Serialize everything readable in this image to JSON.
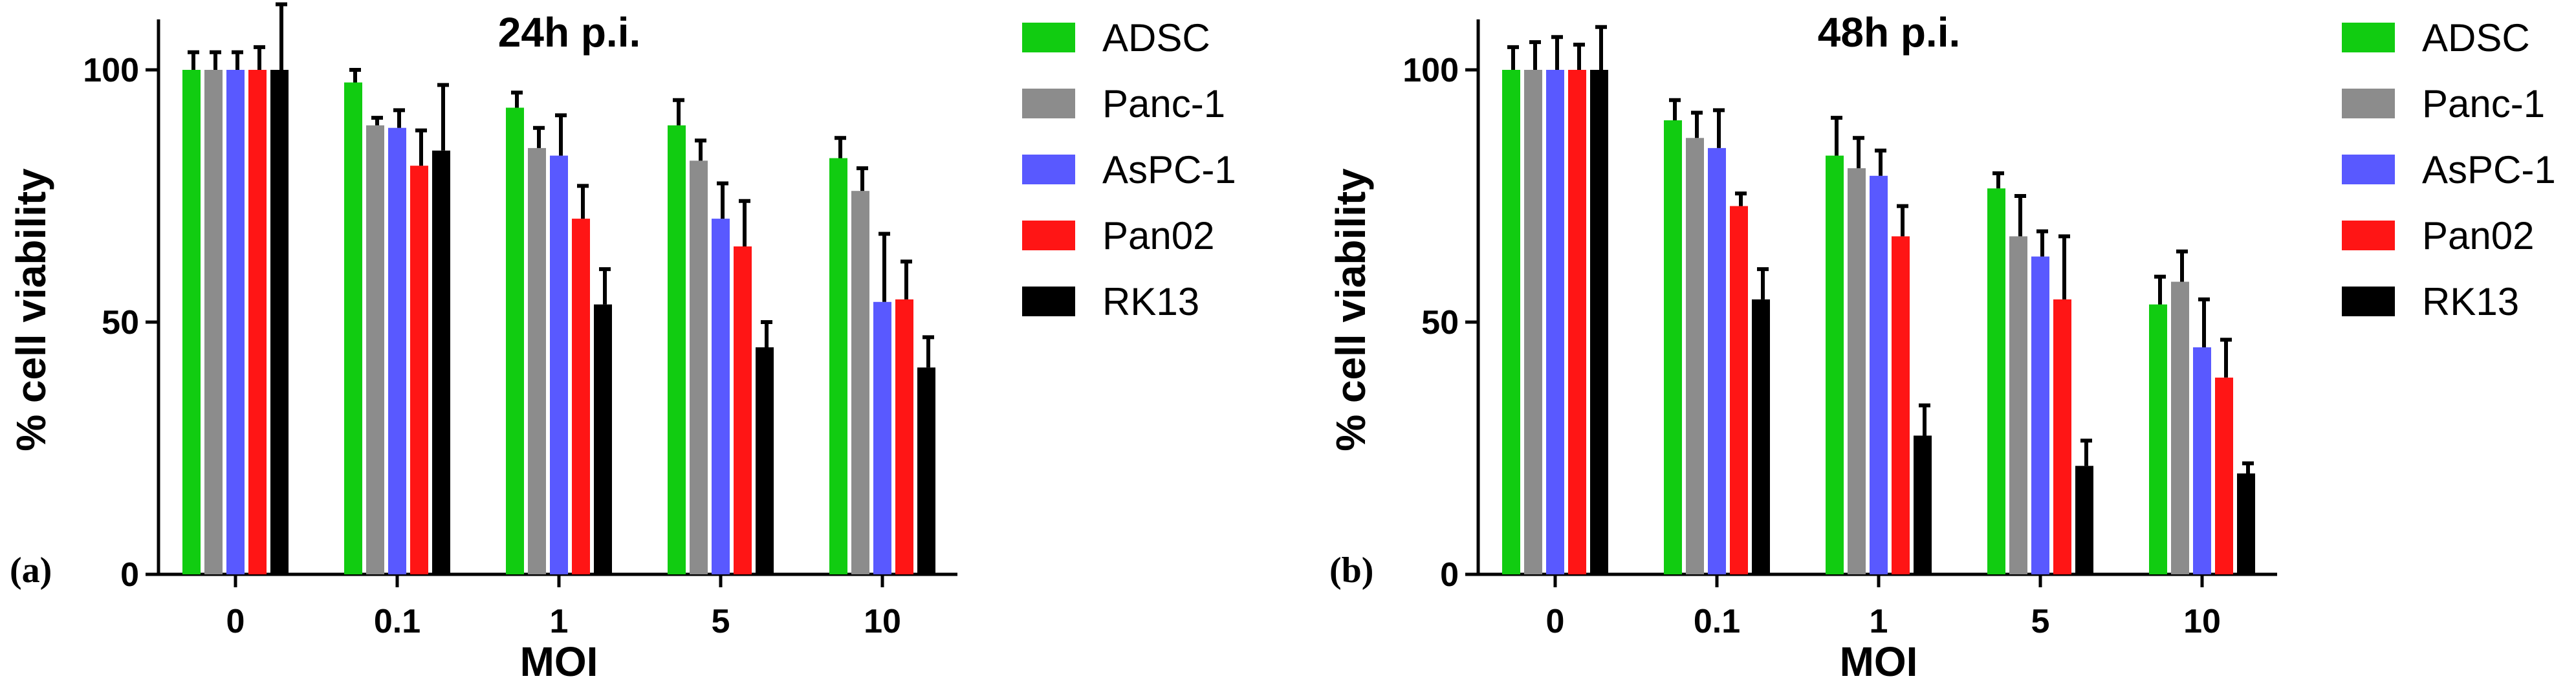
{
  "colors": {
    "ADSC": "#11cc11",
    "Panc-1": "#8c8c8c",
    "AsPC-1": "#5959ff",
    "Pan02": "#ff1515",
    "RK13": "#000000",
    "axis": "#000000"
  },
  "chart_data": [
    {
      "type": "bar",
      "panel_label": "(a)",
      "title": "24h p.i.",
      "xlabel": "MOI",
      "ylabel": "% cell viability",
      "ylim": [
        0,
        110
      ],
      "yticks": [
        0,
        50,
        100
      ],
      "categories": [
        "0",
        "0.1",
        "1",
        "5",
        "10"
      ],
      "series": [
        {
          "name": "ADSC",
          "values": [
            100,
            97.5,
            92.5,
            89,
            82.5
          ],
          "errors": [
            3.5,
            2.5,
            3,
            5,
            4
          ]
        },
        {
          "name": "Panc-1",
          "values": [
            100,
            89,
            84.5,
            82,
            76
          ],
          "errors": [
            3.5,
            1.5,
            4,
            4,
            4.5
          ]
        },
        {
          "name": "AsPC-1",
          "values": [
            100,
            88.5,
            83,
            70.5,
            54
          ],
          "errors": [
            3.5,
            3.5,
            8,
            7,
            13.5
          ]
        },
        {
          "name": "Pan02",
          "values": [
            100,
            81,
            70.5,
            65,
            54.5
          ],
          "errors": [
            4.5,
            7,
            6.5,
            9,
            7.5
          ]
        },
        {
          "name": "RK13",
          "values": [
            100,
            84,
            53.5,
            45,
            41
          ],
          "errors": [
            13,
            13,
            7,
            5,
            6
          ]
        }
      ]
    },
    {
      "type": "bar",
      "panel_label": "(b)",
      "title": "48h p.i.",
      "xlabel": "MOI",
      "ylabel": "% cell viability",
      "ylim": [
        0,
        110
      ],
      "yticks": [
        0,
        50,
        100
      ],
      "categories": [
        "0",
        "0.1",
        "1",
        "5",
        "10"
      ],
      "series": [
        {
          "name": "ADSC",
          "values": [
            100,
            90,
            83,
            76.5,
            53.5
          ],
          "errors": [
            4.5,
            4,
            7.5,
            3,
            5.5
          ]
        },
        {
          "name": "Panc-1",
          "values": [
            100,
            86.5,
            80.5,
            67,
            58
          ],
          "errors": [
            5.5,
            5,
            6,
            8,
            6
          ]
        },
        {
          "name": "AsPC-1",
          "values": [
            100,
            84.5,
            79,
            63,
            45
          ],
          "errors": [
            6.5,
            7.5,
            5,
            5,
            9.5
          ]
        },
        {
          "name": "Pan02",
          "values": [
            100,
            73,
            67,
            54.5,
            39
          ],
          "errors": [
            5,
            2.5,
            6,
            12.5,
            7.5
          ]
        },
        {
          "name": "RK13",
          "values": [
            100,
            54.5,
            27.5,
            21.5,
            20
          ],
          "errors": [
            8.5,
            6,
            6,
            5,
            2
          ]
        }
      ]
    }
  ]
}
